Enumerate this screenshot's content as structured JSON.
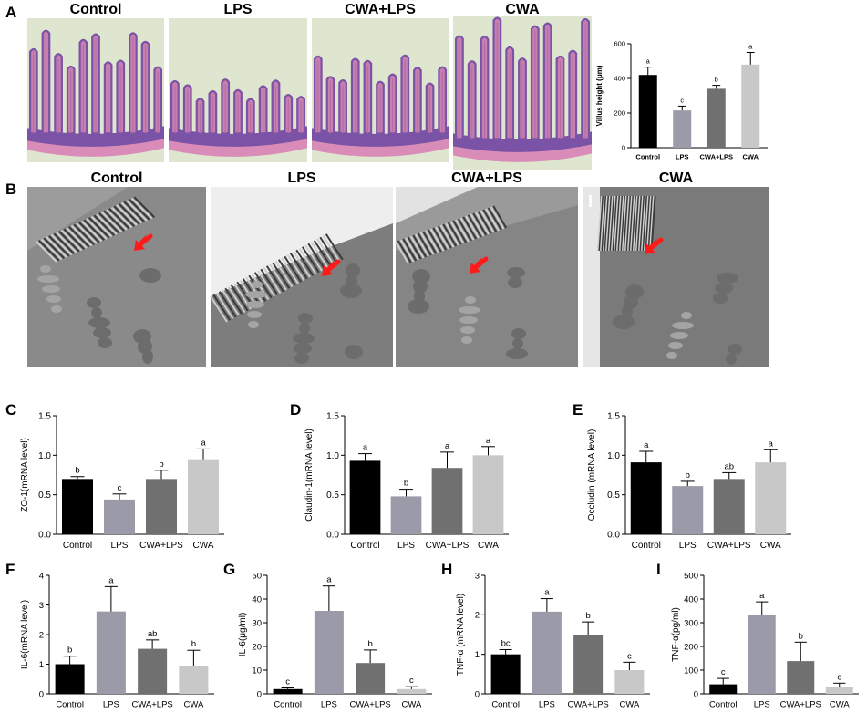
{
  "panels": {
    "A": "A",
    "B": "B",
    "C": "C",
    "D": "D",
    "E": "E",
    "F": "F",
    "G": "G",
    "H": "H",
    "I": "I"
  },
  "histology": {
    "titles": [
      "Control",
      "LPS",
      "CWA+LPS",
      "CWA"
    ],
    "colors": {
      "background": "#dfe6cf",
      "villus": "#7a52a6",
      "stain": "#c77fb0",
      "muscle": "#d98cb8"
    }
  },
  "tem": {
    "titles": [
      "Control",
      "LPS",
      "CWA+LPS",
      "CWA"
    ],
    "arrow_color": "#ff1a1a",
    "scale_mark": "I"
  },
  "chart_data": [
    {
      "id": "A",
      "type": "bar",
      "categories": [
        "Control",
        "LPS",
        "CWA+LPS",
        "CWA"
      ],
      "values": [
        420,
        215,
        340,
        480
      ],
      "errors": [
        45,
        25,
        20,
        70
      ],
      "letters": [
        "a",
        "c",
        "b",
        "a"
      ],
      "ylabel": "Villus height (μm)",
      "ylim": [
        0,
        600
      ],
      "yticks": [
        "0",
        "200",
        "400",
        "600"
      ],
      "colors": [
        "#000000",
        "#9a9aa8",
        "#707070",
        "#c8c8c8"
      ]
    },
    {
      "id": "C",
      "type": "bar",
      "categories": [
        "Control",
        "LPS",
        "CWA+LPS",
        "CWA"
      ],
      "values": [
        0.7,
        0.44,
        0.7,
        0.95
      ],
      "errors": [
        0.03,
        0.07,
        0.11,
        0.13
      ],
      "letters": [
        "b",
        "c",
        "b",
        "a"
      ],
      "ylabel": "ZO-1(mRNA level)",
      "ylim": [
        0,
        1.5
      ],
      "yticks": [
        "0.0",
        "0.5",
        "1.0",
        "1.5"
      ],
      "colors": [
        "#000000",
        "#9a9aa8",
        "#707070",
        "#c8c8c8"
      ]
    },
    {
      "id": "D",
      "type": "bar",
      "categories": [
        "Control",
        "LPS",
        "CWA+LPS",
        "CWA"
      ],
      "values": [
        0.93,
        0.48,
        0.84,
        1.0
      ],
      "errors": [
        0.09,
        0.09,
        0.2,
        0.11
      ],
      "letters": [
        "a",
        "b",
        "a",
        "a"
      ],
      "ylabel": "Claudin-1(mRNA level)",
      "ylim": [
        0,
        1.5
      ],
      "yticks": [
        "0.0",
        "0.5",
        "1.0",
        "1.5"
      ],
      "colors": [
        "#000000",
        "#9a9aa8",
        "#707070",
        "#c8c8c8"
      ]
    },
    {
      "id": "E",
      "type": "bar",
      "categories": [
        "Control",
        "LPS",
        "CWA+LPS",
        "CWA"
      ],
      "values": [
        0.91,
        0.61,
        0.7,
        0.91
      ],
      "errors": [
        0.14,
        0.06,
        0.08,
        0.16
      ],
      "letters": [
        "a",
        "b",
        "ab",
        "a"
      ],
      "ylabel": "Occludin (mRNA level)",
      "ylim": [
        0,
        1.5
      ],
      "yticks": [
        "0.0",
        "0.5",
        "1.0",
        "1.5"
      ],
      "colors": [
        "#000000",
        "#9a9aa8",
        "#707070",
        "#c8c8c8"
      ]
    },
    {
      "id": "F",
      "type": "bar",
      "categories": [
        "Control",
        "LPS",
        "CWA+LPS",
        "CWA"
      ],
      "values": [
        1.0,
        2.78,
        1.52,
        0.95
      ],
      "errors": [
        0.27,
        0.84,
        0.3,
        0.52
      ],
      "letters": [
        "b",
        "a",
        "ab",
        "b"
      ],
      "ylabel": "IL-6(mRNA level)",
      "ylim": [
        0,
        4
      ],
      "yticks": [
        "0",
        "1",
        "2",
        "3",
        "4"
      ],
      "colors": [
        "#000000",
        "#9a9aa8",
        "#707070",
        "#c8c8c8"
      ]
    },
    {
      "id": "G",
      "type": "bar",
      "categories": [
        "Control",
        "LPS",
        "CWA+LPS",
        "CWA"
      ],
      "values": [
        2.0,
        35.0,
        13.0,
        2.0
      ],
      "errors": [
        0.5,
        10.5,
        5.5,
        1.0
      ],
      "letters": [
        "c",
        "a",
        "b",
        "c"
      ],
      "ylabel": "IL-6(μg/ml)",
      "ylim": [
        0,
        50
      ],
      "yticks": [
        "0",
        "10",
        "20",
        "30",
        "40",
        "50"
      ],
      "colors": [
        "#000000",
        "#9a9aa8",
        "#707070",
        "#c8c8c8"
      ]
    },
    {
      "id": "H",
      "type": "bar",
      "categories": [
        "Control",
        "LPS",
        "CWA+LPS",
        "CWA"
      ],
      "values": [
        1.0,
        2.08,
        1.5,
        0.6
      ],
      "errors": [
        0.12,
        0.33,
        0.32,
        0.2
      ],
      "letters": [
        "bc",
        "a",
        "b",
        "c"
      ],
      "ylabel": "TNF-α (mRNA level)",
      "ylim": [
        0,
        3
      ],
      "yticks": [
        "0",
        "1",
        "2",
        "3"
      ],
      "colors": [
        "#000000",
        "#9a9aa8",
        "#707070",
        "#c8c8c8"
      ]
    },
    {
      "id": "I",
      "type": "bar",
      "categories": [
        "Control",
        "LPS",
        "CWA+LPS",
        "CWA"
      ],
      "values": [
        40,
        333,
        138,
        30
      ],
      "errors": [
        25,
        55,
        80,
        15
      ],
      "letters": [
        "c",
        "a",
        "b",
        "c"
      ],
      "ylabel": "TNF-α(pg/ml)",
      "ylim": [
        0,
        500
      ],
      "yticks": [
        "0",
        "100",
        "200",
        "300",
        "400",
        "500"
      ],
      "colors": [
        "#000000",
        "#9a9aa8",
        "#707070",
        "#c8c8c8"
      ]
    }
  ]
}
